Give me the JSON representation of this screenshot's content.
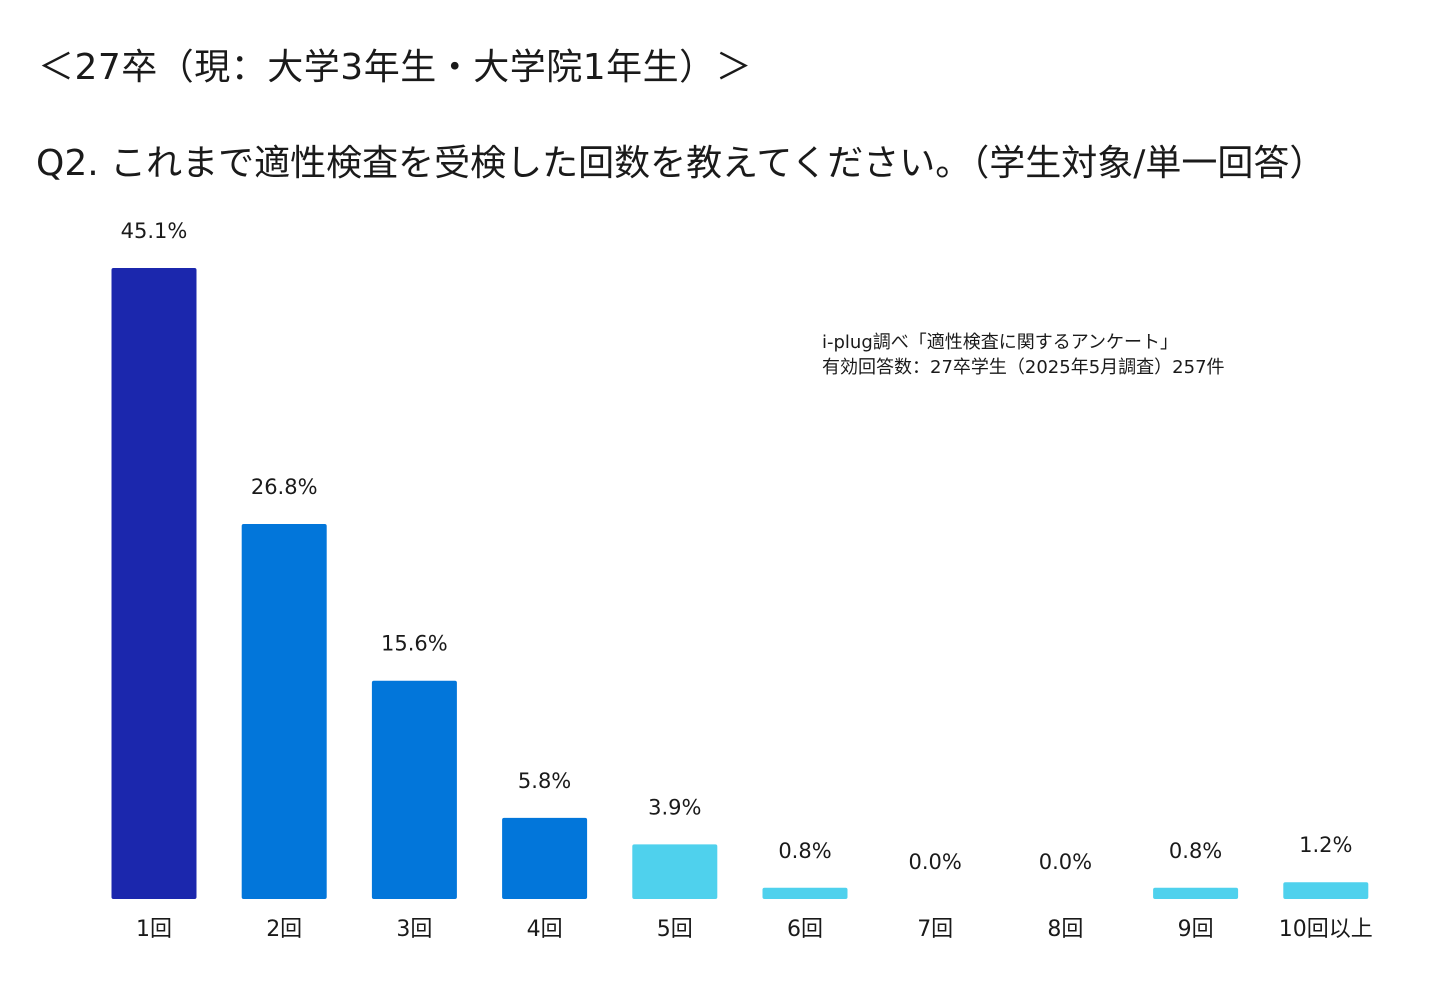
{
  "header": {
    "cohort_title": "＜27卒（現：大学3年生・大学院1年生）＞",
    "question": "Q2. これまで適性検査を受検した回数を教えてください。（学生対象/単一回答）"
  },
  "source_note": {
    "line1": "i-plug調べ「適性検査に関するアンケート」",
    "line2": "有効回答数：27卒学生（2025年5月調査）257件"
  },
  "chart_data": {
    "type": "bar",
    "title": "",
    "xlabel": "",
    "ylabel": "",
    "categories": [
      "1回",
      "2回",
      "3回",
      "4回",
      "5回",
      "6回",
      "7回",
      "8回",
      "9回",
      "10回以上"
    ],
    "values": [
      45.1,
      26.8,
      15.6,
      5.8,
      3.9,
      0.8,
      0.0,
      0.0,
      0.8,
      1.2
    ],
    "value_labels": [
      "45.1%",
      "26.8%",
      "15.6%",
      "5.8%",
      "3.9%",
      "0.8%",
      "0.0%",
      "0.0%",
      "0.8%",
      "1.2%"
    ],
    "unit": "%",
    "ylim": [
      0,
      45.1
    ],
    "grid": false,
    "legend": "none",
    "bar_colors": [
      "#1b27ad",
      "#0276da",
      "#0276da",
      "#0276da",
      "#4fd1ed",
      "#4fd1ed",
      "#4fd1ed",
      "#4fd1ed",
      "#4fd1ed",
      "#4fd1ed"
    ]
  }
}
